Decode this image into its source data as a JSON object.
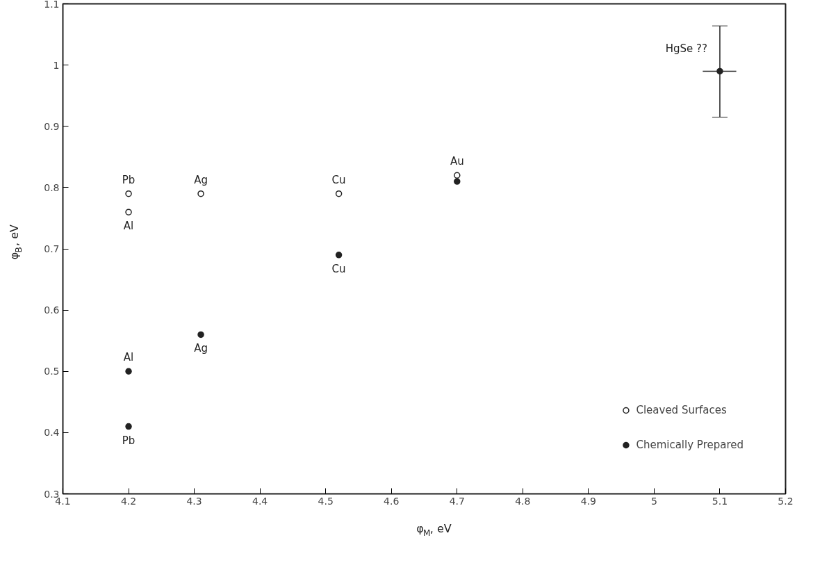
{
  "chart_data": {
    "type": "scatter",
    "xlabel": "φ$_{M}$, eV",
    "ylabel": "φ$_{B}$, eV",
    "xlim": [
      4.1,
      5.2
    ],
    "ylim": [
      0.3,
      1.1
    ],
    "xticks": [
      4.1,
      4.2,
      4.3,
      4.4,
      4.5,
      4.6,
      4.7,
      4.8,
      4.9,
      5.0,
      5.1,
      5.2
    ],
    "yticks": [
      0.3,
      0.4,
      0.5,
      0.6,
      0.7,
      0.8,
      0.9,
      1.0,
      1.1
    ],
    "grid": false,
    "legend": "bottom right",
    "series": [
      {
        "name": "Cleaved Surfaces",
        "color": "#222222",
        "marker": "circle",
        "x": [
          4.2,
          4.2,
          4.31,
          4.52,
          4.7
        ],
        "values": [
          0.79,
          0.76,
          0.79,
          0.79,
          0.82
        ]
      },
      {
        "name": "Chemically Prepared",
        "color": "#222222",
        "marker": "circle",
        "x": [
          4.2,
          4.2,
          4.31,
          4.52,
          4.7,
          5.1
        ],
        "values": [
          0.41,
          0.5,
          0.56,
          0.69,
          0.81,
          0.99
        ],
        "errors": [
          null,
          null,
          null,
          null,
          null,
          [
            0.915,
            1.064
          ]
        ],
        "xerrors": [
          null,
          null,
          null,
          null,
          null,
          [
            5.074,
            5.125
          ]
        ]
      }
    ],
    "annotations": [
      {
        "text": "Pb",
        "x": 4.2,
        "y": 0.79
      },
      {
        "text": "Al",
        "x": 4.2,
        "y": 0.76
      },
      {
        "text": "Ag",
        "x": 4.31,
        "y": 0.79
      },
      {
        "text": "Cu",
        "x": 4.52,
        "y": 0.79
      },
      {
        "text": "Au",
        "x": 4.7,
        "y": 0.82
      },
      {
        "text": "Cu",
        "x": 4.52,
        "y": 0.69
      },
      {
        "text": "Al",
        "x": 4.2,
        "y": 0.5
      },
      {
        "text": "Ag",
        "x": 4.31,
        "y": 0.56
      },
      {
        "text": "Pb",
        "x": 4.2,
        "y": 0.41
      },
      {
        "text": "HgSe ??",
        "x": 5.1,
        "y": 0.99
      }
    ]
  }
}
